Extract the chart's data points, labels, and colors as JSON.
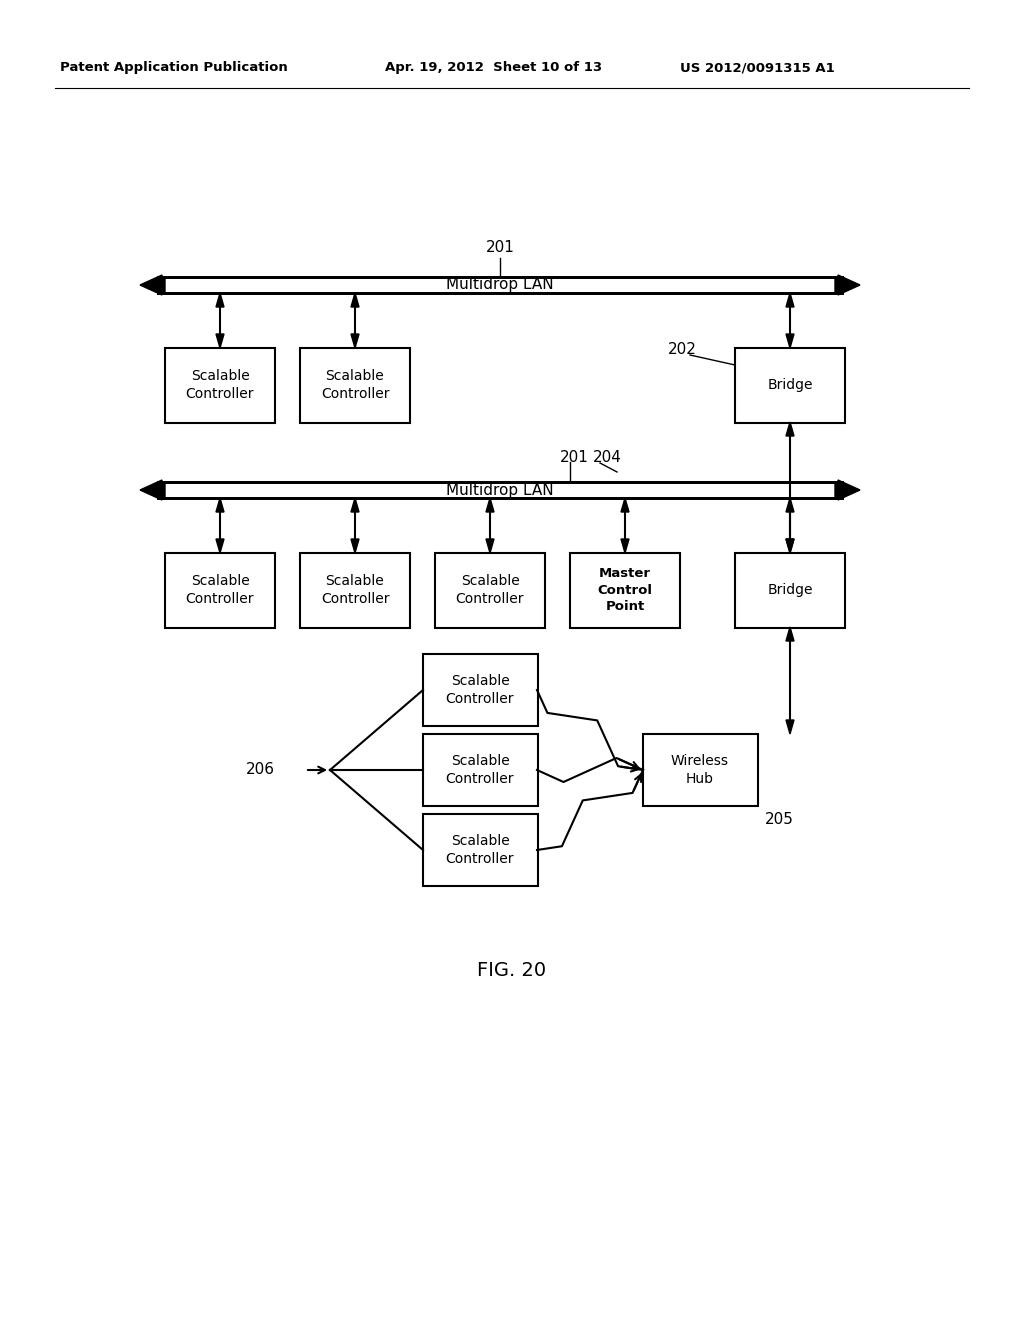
{
  "bg_color": "#ffffff",
  "header_left": "Patent Application Publication",
  "header_mid": "Apr. 19, 2012  Sheet 10 of 13",
  "header_right": "US 2012/0091315 A1",
  "fig_label": "FIG. 20",
  "lan1_label": "Multidrop LAN",
  "lan2_label": "Multidrop LAN",
  "lan1_ref": "201",
  "lan2_ref": "201",
  "bridge_top_ref": "202",
  "mcp_ref": "204",
  "wireless_hub_ref": "205",
  "fan_ref": "206"
}
